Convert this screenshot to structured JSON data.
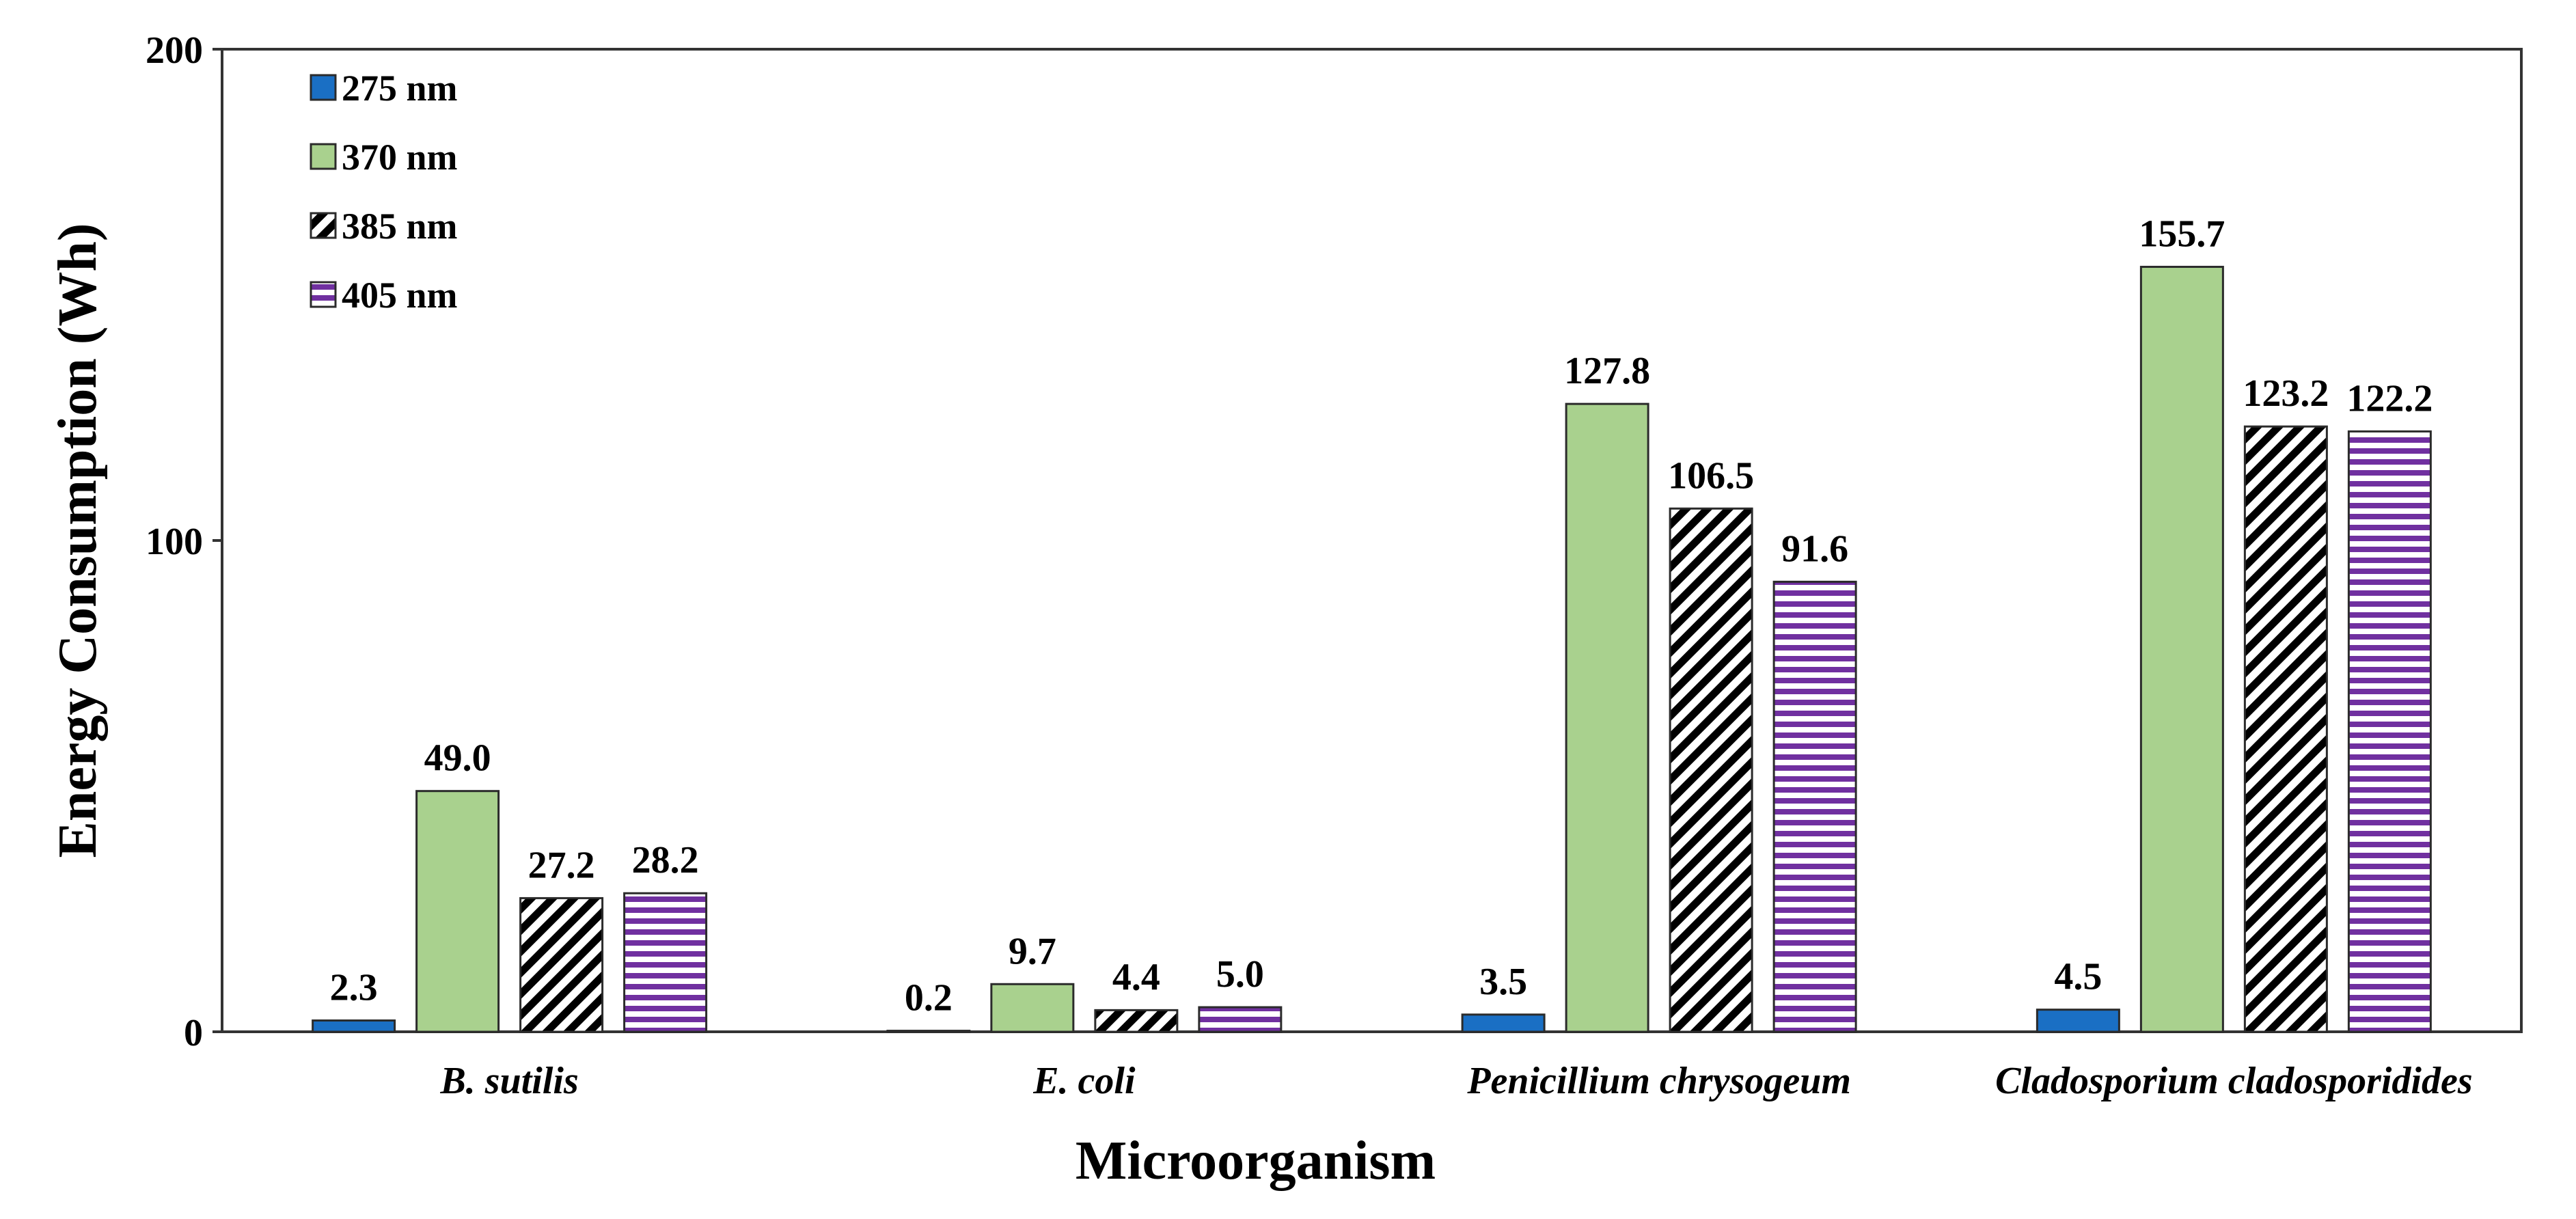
{
  "chart_data": {
    "type": "bar",
    "title": "",
    "xlabel": "Microorganism",
    "ylabel": "Energy Consumption (Wh)",
    "ylim": [
      0,
      200
    ],
    "yticks": [
      "0",
      "100",
      "200"
    ],
    "categories": [
      "B. sutilis",
      "E. coli",
      "Penicillium chrysogeum",
      "Cladosporium cladosporidides"
    ],
    "series": [
      {
        "name": "275 nm",
        "color": "#1a6fc4",
        "pattern": "solid",
        "values": [
          2.3,
          0.2,
          3.5,
          4.5
        ],
        "labels": [
          "2.3",
          "0.2",
          "3.5",
          "4.5"
        ]
      },
      {
        "name": "370 nm",
        "color": "#a9d18e",
        "pattern": "solid",
        "values": [
          49.0,
          9.7,
          127.8,
          155.7
        ],
        "labels": [
          "49.0",
          "9.7",
          "127.8",
          "155.7"
        ]
      },
      {
        "name": "385 nm",
        "color": "#000000",
        "pattern": "diagonal",
        "values": [
          27.2,
          4.4,
          106.5,
          123.2
        ],
        "labels": [
          "27.2",
          "4.4",
          "106.5",
          "123.2"
        ]
      },
      {
        "name": "405 nm",
        "color": "#7030a0",
        "pattern": "horizontal",
        "values": [
          28.2,
          5.0,
          91.6,
          122.2
        ],
        "labels": [
          "28.2",
          "5.0",
          "91.6",
          "122.2"
        ]
      }
    ],
    "legend_position": "top-left",
    "grid": false
  }
}
